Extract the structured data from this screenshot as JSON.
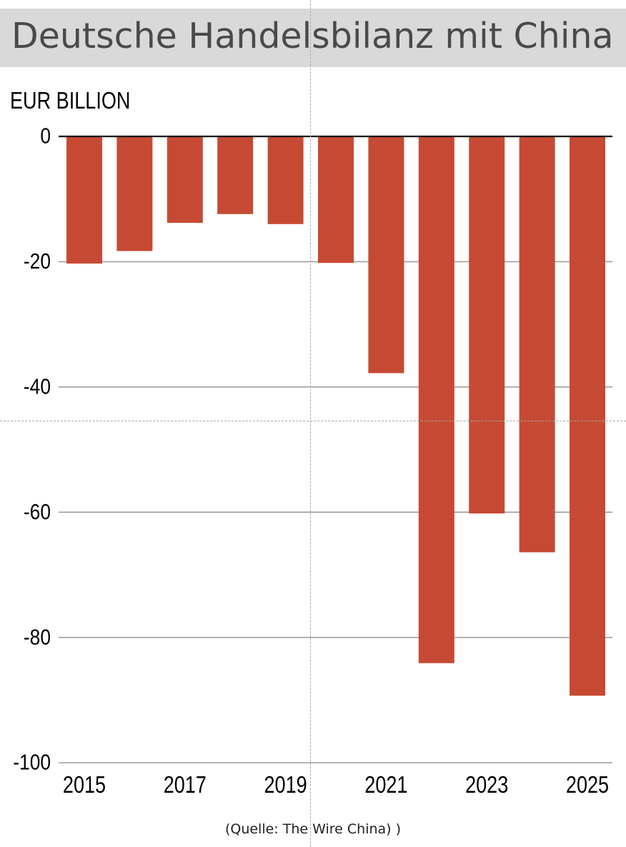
{
  "header": {
    "title": "Deutsche Handelsbilanz mit China"
  },
  "footer": {
    "source": "(Quelle: The Wire China) )"
  },
  "colors": {
    "bar": "#c64a33",
    "grid": "#9e9e9e",
    "zero_line": "#111111",
    "title_background": "#d9d9d9",
    "guide": "#a6a6a6"
  },
  "chart_data": {
    "type": "bar",
    "title": "Deutsche Handelsbilanz mit China",
    "unit_label": "EUR BILLION",
    "categories": [
      "2015",
      "2016",
      "2017",
      "2018",
      "2019",
      "2020",
      "2021",
      "2022",
      "2023",
      "2024",
      "2025"
    ],
    "values": [
      -20.3,
      -18.3,
      -13.8,
      -12.4,
      -14.0,
      -20.2,
      -37.8,
      -84.1,
      -60.2,
      -66.4,
      -89.3
    ],
    "x_tick_labels": [
      "2015",
      "2017",
      "2019",
      "2021",
      "2023",
      "2025"
    ],
    "y_ticks": [
      0,
      -20,
      -40,
      -60,
      -80,
      -100
    ],
    "y_tick_labels": [
      "0",
      "-20",
      "-40",
      "-60",
      "-80",
      "-100"
    ],
    "ylim": [
      -100,
      0
    ],
    "grid": true,
    "xlabel": "",
    "ylabel": ""
  }
}
